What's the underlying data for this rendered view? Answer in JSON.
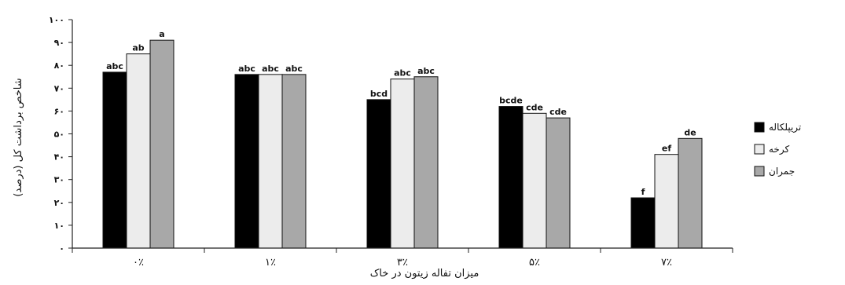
{
  "chart_data": {
    "type": "bar",
    "categories": [
      "۰٪",
      "۱٪",
      "۳٪",
      "۵٪",
      "۷٪"
    ],
    "xlabel": "میزان تفاله زیتون در خاک",
    "ylabel": "شاخص برداشت کل (درصد)",
    "ylim": [
      0,
      100
    ],
    "yticks": [
      0,
      10,
      20,
      30,
      40,
      50,
      60,
      70,
      80,
      90,
      100
    ],
    "ytick_labels": [
      "۰",
      "۱۰",
      "۲۰",
      "۳۰",
      "۴۰",
      "۵۰",
      "۶۰",
      "۷۰",
      "۸۰",
      "۹۰",
      "۱۰۰"
    ],
    "legend_position": "right",
    "series": [
      {
        "name": "تریپلکاله",
        "color": "#000000",
        "values": [
          77,
          76,
          65,
          62,
          22
        ],
        "labels": [
          "abc",
          "abc",
          "bcd",
          "bcde",
          "f"
        ]
      },
      {
        "name": "کرخه",
        "color": "#ececec",
        "values": [
          85,
          76,
          74,
          59,
          41
        ],
        "labels": [
          "ab",
          "abc",
          "abc",
          "cde",
          "ef"
        ]
      },
      {
        "name": "جمران",
        "color": "#a8a8a8",
        "values": [
          91,
          76,
          75,
          57,
          48
        ],
        "labels": [
          "a",
          "abc",
          "abc",
          "cde",
          "de"
        ]
      }
    ]
  }
}
